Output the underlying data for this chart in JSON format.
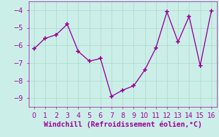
{
  "x": [
    0,
    1,
    2,
    3,
    4,
    5,
    6,
    7,
    8,
    9,
    10,
    11,
    12,
    13,
    14,
    15,
    16
  ],
  "y": [
    -6.2,
    -5.6,
    -5.4,
    -4.8,
    -6.35,
    -6.9,
    -6.75,
    -8.9,
    -8.55,
    -8.3,
    -7.4,
    -6.15,
    -4.1,
    -5.8,
    -4.35,
    -7.15,
    -4.05
  ],
  "line_color": "#990099",
  "marker": "+",
  "marker_size": 4,
  "line_width": 1.0,
  "bg_color": "#cceee8",
  "grid_color": "#aaddcc",
  "xlabel": "Windchill (Refroidissement éolien,°C)",
  "xlabel_color": "#990099",
  "xlabel_fontsize": 7.5,
  "tick_color": "#990099",
  "tick_fontsize": 7,
  "ylim": [
    -9.5,
    -3.5
  ],
  "xlim": [
    -0.5,
    16.5
  ],
  "yticks": [
    -9,
    -8,
    -7,
    -6,
    -5,
    -4
  ],
  "xticks": [
    0,
    1,
    2,
    3,
    4,
    5,
    6,
    7,
    8,
    9,
    10,
    11,
    12,
    13,
    14,
    15,
    16
  ]
}
